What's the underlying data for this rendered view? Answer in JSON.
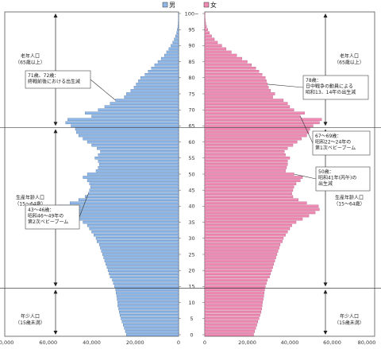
{
  "chart_data": {
    "type": "bar",
    "orientation": "horizontal-population-pyramid",
    "legend": {
      "placement": "top-center"
    },
    "series": [
      {
        "name": "男",
        "color": "#8FB8E8",
        "side": "left",
        "values": [
          24000,
          24500,
          25000,
          25500,
          26000,
          26500,
          27000,
          27300,
          27600,
          28000,
          28000,
          28300,
          28500,
          28800,
          29000,
          29500,
          30000,
          30500,
          31500,
          32000,
          32500,
          33000,
          33500,
          34000,
          34500,
          35000,
          35500,
          36000,
          36500,
          37500,
          38000,
          39000,
          40000,
          41000,
          42000,
          44000,
          47000,
          51000,
          54000,
          56000,
          55500,
          50000,
          46000,
          43000,
          41500,
          41000,
          40500,
          41000,
          42000,
          44000,
          42000,
          38000,
          37000,
          36500,
          37000,
          38500,
          37000,
          36000,
          37500,
          40000,
          42000,
          44000,
          46000,
          47000,
          47500,
          49500,
          52000,
          51000,
          40000,
          43000,
          37000,
          34000,
          31500,
          29000,
          25000,
          24000,
          22000,
          20500,
          19500,
          18500,
          17500,
          15500,
          14000,
          12500,
          11000,
          9500,
          8000,
          6500,
          5500,
          4500,
          3500,
          2700,
          2000,
          1400,
          900,
          600,
          350,
          200,
          100,
          60,
          40
        ]
      },
      {
        "name": "女",
        "color": "#F08CB4",
        "side": "right",
        "values": [
          23000,
          23500,
          24000,
          24500,
          25000,
          25500,
          26000,
          26500,
          26800,
          27000,
          27200,
          27500,
          27800,
          28000,
          28200,
          28500,
          29000,
          29500,
          30500,
          31000,
          31500,
          32000,
          32500,
          33000,
          33500,
          34000,
          34500,
          35000,
          35500,
          36500,
          37000,
          38000,
          39000,
          40000,
          41000,
          43000,
          46000,
          49000,
          52000,
          54000,
          53500,
          48000,
          44000,
          41500,
          41000,
          41500,
          42000,
          43000,
          45000,
          46000,
          42000,
          38000,
          38500,
          39000,
          39000,
          40000,
          38000,
          37500,
          39000,
          41500,
          43500,
          45500,
          48000,
          49000,
          49500,
          51000,
          54000,
          55000,
          45000,
          47000,
          42000,
          40000,
          39000,
          37000,
          32000,
          33000,
          31000,
          30000,
          29500,
          29000,
          28500,
          27000,
          25500,
          24000,
          22000,
          20000,
          17500,
          15000,
          12500,
          10000,
          8000,
          6000,
          4500,
          3200,
          2200,
          1400,
          800,
          450,
          220,
          110,
          60
        ]
      }
    ],
    "y_ticks": [
      "0",
      "5",
      "10",
      "15",
      "20",
      "25",
      "30",
      "35",
      "40",
      "45",
      "50",
      "55",
      "60",
      "65",
      "70",
      "75",
      "80",
      "85",
      "90",
      "95",
      "100~"
    ],
    "x_ticks_left": [
      "80,000",
      "60,000",
      "40,000",
      "20,000",
      "0"
    ],
    "x_ticks_right": [
      "0",
      "20,000",
      "40,000",
      "60,000",
      "80,000"
    ],
    "xlim": [
      0,
      80000
    ],
    "ylim": [
      0,
      100
    ],
    "divider_ages": [
      14.5,
      64.5
    ],
    "grid": false,
    "bands": {
      "left": [
        {
          "lines": [
            "老年人口",
            "（65歳以上）"
          ]
        },
        {
          "lines": [
            "生産年齢人口",
            "（15～64歳）"
          ]
        },
        {
          "lines": [
            "年少人口",
            "（15歳未満）"
          ]
        }
      ],
      "right": [
        {
          "lines": [
            "老年人口",
            "（65歳以上）"
          ]
        },
        {
          "lines": [
            "生産年齢人口",
            "（15～64歳）"
          ]
        },
        {
          "lines": [
            "年少人口",
            "（15歳未満）"
          ]
        }
      ]
    },
    "callouts": [
      {
        "side": "left",
        "age": 73,
        "lines": [
          "71歳、72歳：",
          "終戦前後における出生減"
        ]
      },
      {
        "side": "left",
        "age": 44,
        "lines": [
          "43～46歳：",
          "昭和46～49年の",
          "第2次ベビーブーム"
        ]
      },
      {
        "side": "right",
        "age": 78,
        "lines": [
          "78歳：",
          "日中戦争の動員による",
          "昭和13、14年の出生減"
        ]
      },
      {
        "side": "right",
        "age": 68,
        "lines": [
          "67～69歳：",
          "昭和22～24年の",
          "第1次ベビーブーム"
        ]
      },
      {
        "side": "right",
        "age": 50,
        "lines": [
          "50歳：",
          "昭和41年(丙午)の",
          "出生減"
        ]
      }
    ]
  }
}
